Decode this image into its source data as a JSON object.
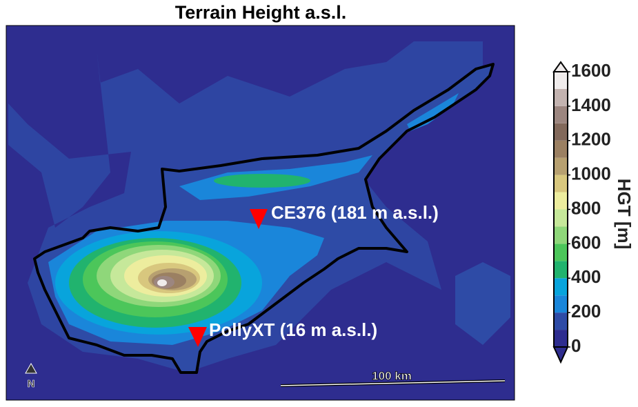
{
  "map": {
    "title": "Terrain Height a.s.l.",
    "stations": [
      {
        "label": "CE376 (181 m a.s.l.)"
      },
      {
        "label": "PollyXT (16 m a.s.l.)"
      }
    ],
    "scale_bar": "100 km",
    "north": "N",
    "colorbar": {
      "label": "HGT [m]",
      "lim": [
        0,
        1600
      ],
      "ticks": [
        0,
        200,
        400,
        600,
        800,
        1000,
        1200,
        1400,
        1600
      ],
      "levels": [
        0,
        100,
        200,
        300,
        400,
        500,
        600,
        700,
        800,
        900,
        1000,
        1100,
        1200,
        1300,
        1400,
        1500,
        1600
      ],
      "colors": [
        "#2e2d8f",
        "#2e4ba6",
        "#1a86da",
        "#08a4dc",
        "#21b36e",
        "#4cc65a",
        "#8fd77a",
        "#c6e89a",
        "#eded9e",
        "#d8c77e",
        "#b7a070",
        "#9b8062",
        "#82695b",
        "#9c8680",
        "#c3b3b0",
        "#f0ecec"
      ]
    }
  }
}
